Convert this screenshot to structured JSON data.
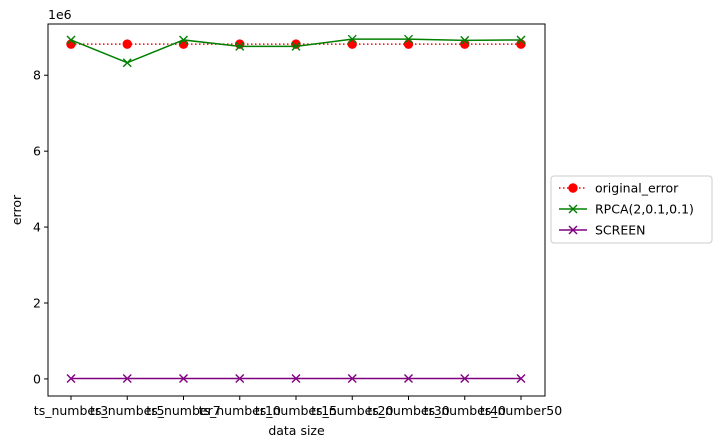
{
  "chart_data": {
    "type": "line",
    "xlabel": "data size",
    "ylabel": "error",
    "y_offset_label": "1e6",
    "categories": [
      "ts_number3",
      "ts_number5",
      "ts_number7",
      "ts_number10",
      "ts_number15",
      "ts_number20",
      "ts_number30",
      "ts_number40",
      "ts_number50"
    ],
    "ylim": [
      -0.45,
      9.35
    ],
    "yticks": [
      0,
      2,
      4,
      6,
      8
    ],
    "legend_position": "center-right, outside",
    "grid": false,
    "series": [
      {
        "name": "original_error",
        "color": "#ff0000",
        "marker": "circle",
        "linestyle": "dotted",
        "values": [
          8.82,
          8.82,
          8.82,
          8.82,
          8.82,
          8.82,
          8.82,
          8.82,
          8.82
        ]
      },
      {
        "name": "RPCA(2,0.1,0.1)",
        "color": "#008000",
        "marker": "x",
        "linestyle": "solid",
        "values": [
          8.93,
          8.33,
          8.93,
          8.76,
          8.76,
          8.95,
          8.95,
          8.92,
          8.93
        ]
      },
      {
        "name": "SCREEN",
        "color": "#800080",
        "marker": "x",
        "linestyle": "solid",
        "values": [
          0.01,
          0.01,
          0.01,
          0.01,
          0.01,
          0.01,
          0.01,
          0.01,
          0.01
        ]
      }
    ]
  }
}
